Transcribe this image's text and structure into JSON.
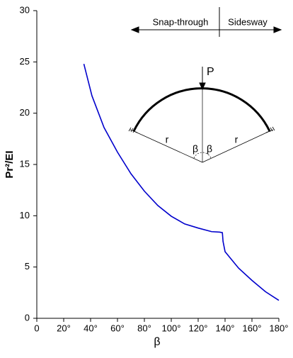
{
  "chart_data": {
    "type": "line",
    "x_label": "β",
    "y_label": "Pr²/EI",
    "x": [
      35,
      41,
      50,
      60,
      70,
      80,
      90,
      100,
      110,
      120,
      130,
      136,
      138,
      138.5,
      140,
      150,
      160,
      170,
      180
    ],
    "series": [
      {
        "color": "#0000cc",
        "values": [
          24.8,
          21.7,
          18.6,
          16.2,
          14.1,
          12.4,
          11.0,
          9.95,
          9.2,
          8.8,
          8.45,
          8.4,
          8.35,
          7.5,
          6.5,
          4.9,
          3.7,
          2.6,
          1.75
        ]
      }
    ],
    "xlim": [
      0,
      180
    ],
    "ylim": [
      0,
      30
    ],
    "xticks": [
      0,
      {
        "value": 20,
        "label": "20°"
      },
      {
        "value": 40,
        "label": "40°"
      },
      {
        "value": 60,
        "label": "60°"
      },
      {
        "value": 80,
        "label": "80°"
      },
      {
        "value": 100,
        "label": "100°"
      },
      {
        "value": 120,
        "label": "120°"
      },
      {
        "value": 140,
        "label": "140°"
      },
      {
        "value": 160,
        "label": "160°"
      },
      {
        "value": 180,
        "label": "180°"
      }
    ],
    "yticks": [
      0,
      5,
      10,
      15,
      20,
      25,
      30
    ],
    "annotations": [
      "Snap-through",
      "Sidesway",
      "P",
      "r",
      "r",
      "β",
      "β"
    ]
  }
}
